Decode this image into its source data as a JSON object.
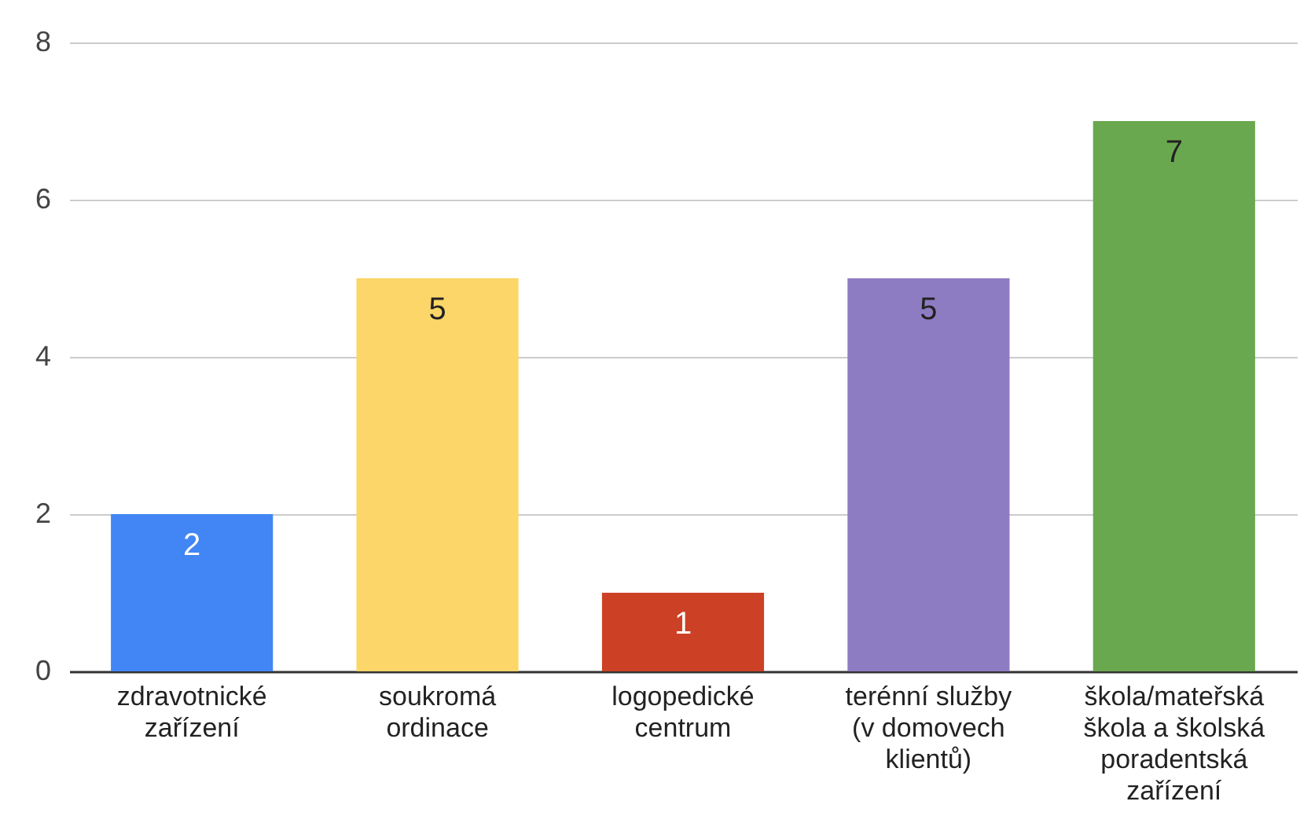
{
  "chart_data": {
    "type": "bar",
    "categories": [
      "zdravotnické zařízení",
      "soukromá ordinace",
      "logopedické centrum",
      "terénní služby (v domovech klientů)",
      "škola/mateřská škola a školská poradentská zařízení"
    ],
    "values": [
      2,
      5,
      1,
      5,
      7
    ],
    "colors": [
      "#4285f4",
      "#fcd668",
      "#cc4125",
      "#8e7cc3",
      "#6aa84f"
    ],
    "ylim": [
      0,
      8
    ],
    "yticks": [
      0,
      2,
      4,
      6,
      8
    ],
    "grid": "y",
    "data_labels": true
  }
}
